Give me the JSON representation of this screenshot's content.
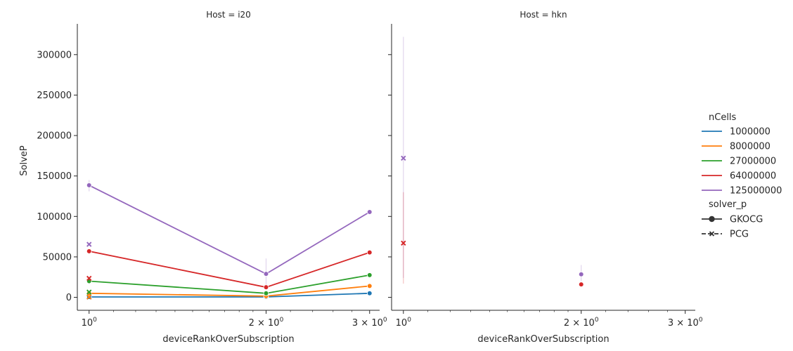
{
  "chart_data": {
    "type": "line",
    "x_label": "deviceRankOverSubscription",
    "y_label": "SolveP",
    "x_scale": "log",
    "x_ticks": [
      {
        "value": 1,
        "base": "10",
        "exp": "0"
      },
      {
        "value": 2,
        "base": "2 × 10",
        "exp": "0"
      },
      {
        "value": 3,
        "base": "3 × 10",
        "exp": "0"
      }
    ],
    "y_ticks": [
      0,
      50000,
      100000,
      150000,
      200000,
      250000,
      300000
    ],
    "y_tick_labels": [
      "0",
      "50000",
      "100000",
      "150000",
      "200000",
      "250000",
      "300000"
    ],
    "ylim": [
      -16000,
      338000
    ],
    "xlim": [
      0.955,
      3.12
    ],
    "legend": {
      "placement": "center-right",
      "hue_title": "nCells",
      "hue_entries": [
        {
          "label": "1000000",
          "color": "#1f77b4"
        },
        {
          "label": "8000000",
          "color": "#ff7f0e"
        },
        {
          "label": "27000000",
          "color": "#2ca02c"
        },
        {
          "label": "64000000",
          "color": "#d62728"
        },
        {
          "label": "125000000",
          "color": "#9467bd"
        }
      ],
      "style_title": "solver_p",
      "style_entries": [
        {
          "label": "GKOCG",
          "marker": "circle",
          "dashed": false
        },
        {
          "label": "PCG",
          "marker": "x",
          "dashed": true
        }
      ]
    },
    "panels": [
      {
        "title": "Host = i20",
        "series": [
          {
            "nCells": "1000000",
            "solver": "GKOCG",
            "color": "#1f77b4",
            "points": [
              [
                1,
                500
              ],
              [
                2,
                500
              ],
              [
                3,
                5000
              ]
            ]
          },
          {
            "nCells": "8000000",
            "solver": "GKOCG",
            "color": "#ff7f0e",
            "points": [
              [
                1,
                5000
              ],
              [
                2,
                1500
              ],
              [
                3,
                14000
              ]
            ]
          },
          {
            "nCells": "27000000",
            "solver": "GKOCG",
            "color": "#2ca02c",
            "points": [
              [
                1,
                20000
              ],
              [
                2,
                5000
              ],
              [
                3,
                27500
              ]
            ]
          },
          {
            "nCells": "64000000",
            "solver": "GKOCG",
            "color": "#d62728",
            "points": [
              [
                1,
                57000
              ],
              [
                2,
                12500
              ],
              [
                3,
                55500
              ]
            ]
          },
          {
            "nCells": "125000000",
            "solver": "GKOCG",
            "color": "#9467bd",
            "points": [
              [
                1,
                138500
              ],
              [
                2,
                29000
              ],
              [
                3,
                105500
              ]
            ]
          },
          {
            "nCells": "1000000",
            "solver": "PCG",
            "color": "#1f77b4",
            "points": [
              [
                1,
                300
              ]
            ]
          },
          {
            "nCells": "8000000",
            "solver": "PCG",
            "color": "#ff7f0e",
            "points": [
              [
                1,
                400
              ]
            ]
          },
          {
            "nCells": "27000000",
            "solver": "PCG",
            "color": "#2ca02c",
            "points": [
              [
                1,
                6500
              ]
            ]
          },
          {
            "nCells": "64000000",
            "solver": "PCG",
            "color": "#d62728",
            "points": [
              [
                1,
                23500
              ]
            ]
          },
          {
            "nCells": "125000000",
            "solver": "PCG",
            "color": "#9467bd",
            "points": [
              [
                1,
                65500
              ]
            ]
          }
        ],
        "error_bars": [
          {
            "color": "#9467bd",
            "x": 1,
            "low": 131000,
            "high": 145000
          },
          {
            "color": "#9467bd",
            "x": 2,
            "low": 12000,
            "high": 48000
          },
          {
            "color": "#d62728",
            "x": 1,
            "low": 54000,
            "high": 59000
          }
        ]
      },
      {
        "title": "Host = hkn",
        "series": [
          {
            "nCells": "64000000",
            "solver": "GKOCG",
            "color": "#d62728",
            "points": [
              [
                2,
                16000
              ]
            ]
          },
          {
            "nCells": "125000000",
            "solver": "GKOCG",
            "color": "#9467bd",
            "points": [
              [
                2,
                28500
              ]
            ]
          },
          {
            "nCells": "64000000",
            "solver": "PCG",
            "color": "#d62728",
            "points": [
              [
                1,
                67000
              ]
            ]
          },
          {
            "nCells": "125000000",
            "solver": "PCG",
            "color": "#9467bd",
            "points": [
              [
                1,
                172000
              ]
            ]
          }
        ],
        "error_bars": [
          {
            "color": "#9467bd",
            "x": 1,
            "low": 24000,
            "high": 322000
          },
          {
            "color": "#d62728",
            "x": 1,
            "low": 17000,
            "high": 130000
          },
          {
            "color": "#9467bd",
            "x": 2,
            "low": 20000,
            "high": 40000
          }
        ]
      }
    ]
  }
}
